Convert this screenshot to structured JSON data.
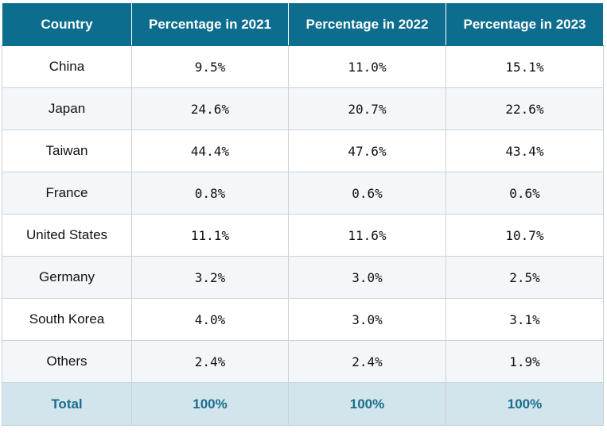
{
  "table": {
    "headers": [
      "Country",
      "Percentage in 2021",
      "Percentage in 2022",
      "Percentage in 2023"
    ],
    "rows": [
      {
        "country": "China",
        "p2021": "9.5%",
        "p2022": "11.0%",
        "p2023": "15.1%"
      },
      {
        "country": "Japan",
        "p2021": "24.6%",
        "p2022": "20.7%",
        "p2023": "22.6%"
      },
      {
        "country": "Taiwan",
        "p2021": "44.4%",
        "p2022": "47.6%",
        "p2023": "43.4%"
      },
      {
        "country": "France",
        "p2021": "0.8%",
        "p2022": "0.6%",
        "p2023": "0.6%"
      },
      {
        "country": "United States",
        "p2021": "11.1%",
        "p2022": "11.6%",
        "p2023": "10.7%"
      },
      {
        "country": "Germany",
        "p2021": "3.2%",
        "p2022": "3.0%",
        "p2023": "2.5%"
      },
      {
        "country": "South Korea",
        "p2021": "4.0%",
        "p2022": "3.0%",
        "p2023": "3.1%"
      },
      {
        "country": "Others",
        "p2021": "2.4%",
        "p2022": "2.4%",
        "p2023": "1.9%"
      }
    ],
    "total": {
      "label": "Total",
      "p2021": "100%",
      "p2022": "100%",
      "p2023": "100%"
    }
  },
  "colors": {
    "header_bg": "#0d6d8e",
    "header_text": "#ffffff",
    "total_bg": "#d3e5ec",
    "total_text": "#1a6d8e",
    "alt_row_bg": "#f3f7f9",
    "border": "#c9d3d8"
  }
}
